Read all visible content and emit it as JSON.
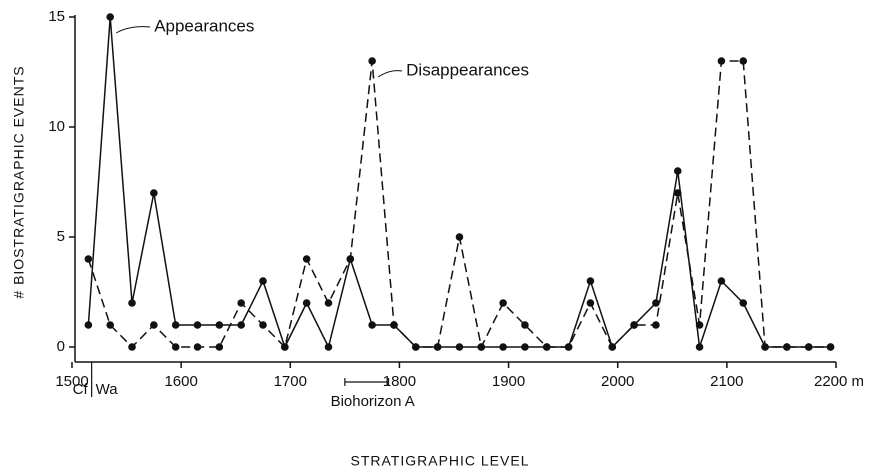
{
  "chart_data": {
    "type": "line",
    "xlabel": "STRATIGRAPHIC LEVEL",
    "ylabel": "# BIOSTRATIGRAPHIC EVENTS",
    "x": [
      1515,
      1535,
      1555,
      1575,
      1595,
      1615,
      1635,
      1655,
      1675,
      1695,
      1715,
      1735,
      1755,
      1775,
      1795,
      1815,
      1835,
      1855,
      1875,
      1895,
      1915,
      1935,
      1955,
      1975,
      1995,
      2015,
      2035,
      2055,
      2075,
      2095,
      2115,
      2135,
      2155,
      2175,
      2195
    ],
    "series": [
      {
        "name": "Appearances",
        "color": "#111111",
        "style": "solid",
        "values": [
          1,
          15,
          2,
          7,
          1,
          1,
          1,
          1,
          3,
          0,
          2,
          0,
          4,
          1,
          1,
          0,
          0,
          0,
          0,
          0,
          0,
          0,
          0,
          3,
          0,
          1,
          2,
          8,
          0,
          3,
          2,
          0,
          0,
          0,
          0
        ]
      },
      {
        "name": "Disappearances",
        "color": "#111111",
        "style": "dashed",
        "values": [
          4,
          1,
          0,
          1,
          0,
          0,
          0,
          2,
          1,
          0,
          4,
          2,
          4,
          13,
          1,
          0,
          0,
          5,
          0,
          2,
          1,
          0,
          0,
          2,
          0,
          1,
          1,
          7,
          1,
          13,
          13,
          0,
          0,
          0,
          0
        ]
      }
    ],
    "xlim": [
      1500,
      2200
    ],
    "ylim": [
      0,
      15
    ],
    "xticks": [
      1500,
      1600,
      1700,
      1800,
      1900,
      2000,
      2100,
      {
        "value": 2200,
        "label": "2200 m"
      }
    ],
    "yticks": [
      0,
      5,
      10,
      15
    ],
    "boundary": {
      "value": 1518,
      "labels": [
        "Cf",
        "Wa"
      ]
    },
    "biohorizon": {
      "label": "Biohorizon A",
      "range": [
        1750,
        1790
      ]
    }
  }
}
